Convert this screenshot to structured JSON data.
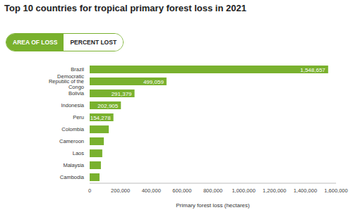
{
  "chart_data": {
    "type": "bar",
    "title": "Top 10 countries for tropical primary forest loss in 2021",
    "annotations": [
      "AREA OF LOSS",
      "PERCENT LOST"
    ],
    "orientation": "horizontal",
    "categories": [
      "Brazil",
      "Democratic Republic of the Congo",
      "Bolivia",
      "Indonesia",
      "Peru",
      "Colombia",
      "Cameroon",
      "Laos",
      "Malaysia",
      "Cambodia"
    ],
    "values": [
      1548657,
      499059,
      291379,
      202905,
      154278,
      124000,
      92000,
      82000,
      73000,
      64000
    ],
    "data_labels": true,
    "value_labels": [
      "1,548,657",
      "499,059",
      "291,379",
      "202,905",
      "154,278",
      null,
      null,
      null,
      null,
      null
    ],
    "color": "#79b12e",
    "xlabel": "Primary forest loss (hectares)",
    "xlim": [
      0,
      1600000
    ],
    "xticks": [
      0,
      {
        "value": 200000,
        "label": "200,000"
      },
      {
        "value": 400000,
        "label": "400,000"
      },
      {
        "value": 600000,
        "label": "600,000"
      },
      {
        "value": 800000,
        "label": "800,000"
      },
      {
        "value": 1000000,
        "label": "1,000,000"
      },
      {
        "value": 1200000,
        "label": "1,200,000"
      },
      {
        "value": 1400000,
        "label": "1,400,000"
      },
      {
        "value": 1600000,
        "label": "1,600,000"
      }
    ],
    "grid": false
  }
}
